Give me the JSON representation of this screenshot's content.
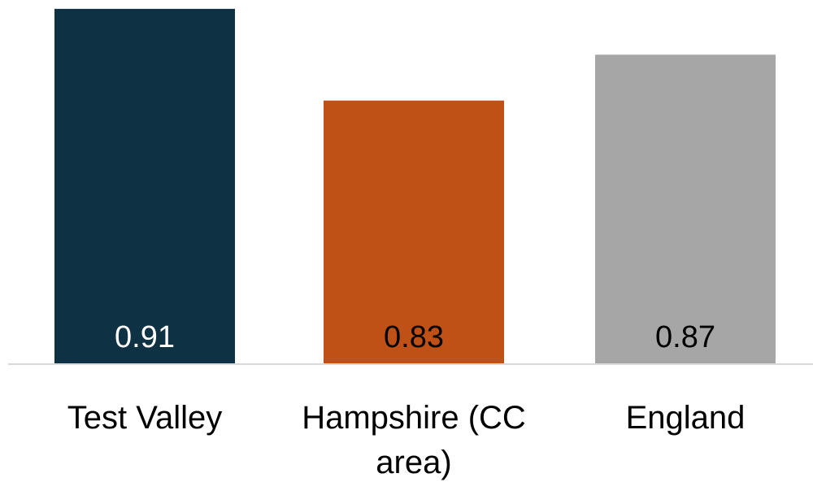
{
  "chart_data": {
    "type": "bar",
    "categories": [
      "Test Valley",
      "Hampshire (CC area)",
      "England"
    ],
    "category_label_lines": [
      [
        "Test Valley"
      ],
      [
        "Hampshire (CC",
        "area)"
      ],
      [
        "England"
      ]
    ],
    "values": [
      0.91,
      0.83,
      0.87
    ],
    "value_labels": [
      "0.91",
      "0.83",
      "0.87"
    ],
    "colors": [
      "#0e3144",
      "#c05116",
      "#a6a6a6"
    ],
    "value_label_colors": [
      "#ffffff",
      "#000000",
      "#000000"
    ],
    "grid": false,
    "legend": "none"
  }
}
